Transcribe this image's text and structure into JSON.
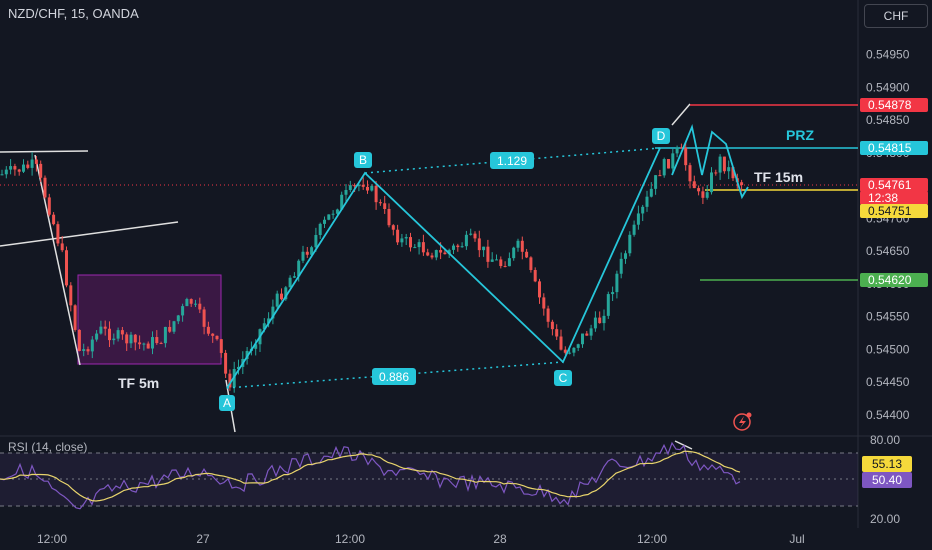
{
  "header": {
    "symbol_title": "NZD/CHF, 15, OANDA",
    "currency": "CHF"
  },
  "rsi": {
    "title": "RSI (14, close)",
    "value_purple": "50.40",
    "value_yellow": "55.13"
  },
  "colors": {
    "bg": "#131722",
    "up": "#26a69a",
    "down": "#ef5350",
    "pattern": "#26c6da",
    "rsi_line": "#7e57c2",
    "rsi_ma": "#e8d46c"
  },
  "chart_data": [
    {
      "type": "candlestick",
      "ylim": [
        0.5438,
        0.5498
      ],
      "y_ticks": [
        "0.54950",
        "0.54900",
        "0.54850",
        "0.54800",
        "0.54750",
        "0.54700",
        "0.54650",
        "0.54600",
        "0.54550",
        "0.54500",
        "0.54450",
        "0.54400"
      ],
      "x_ticks": [
        "12:00",
        "27",
        "12:00",
        "28",
        "12:00",
        "Jul"
      ],
      "price_tags": [
        {
          "label": "0.54878",
          "value": 0.54878,
          "color": "#f23645"
        },
        {
          "label": "0.54815",
          "value": 0.54815,
          "color": "#26c6da"
        },
        {
          "label": "0.54761",
          "value": 0.54761,
          "color": "#f23645"
        },
        {
          "label": "12:38",
          "value": 0.54742,
          "color": "#f23645"
        },
        {
          "label": "0.54751",
          "value": 0.54751,
          "color": "#f5d93b"
        },
        {
          "label": "0.54620",
          "value": 0.5462,
          "color": "#4caf50"
        }
      ],
      "pattern_points": [
        {
          "label": "A",
          "value": 0.54455
        },
        {
          "label": "B",
          "value": 0.54768
        },
        {
          "label": "C",
          "value": 0.545
        },
        {
          "label": "D",
          "value": 0.54815
        }
      ],
      "ratios": [
        {
          "label": "1.129"
        },
        {
          "label": "0.886"
        }
      ],
      "annotations": [
        "TF 5m",
        "TF 15m",
        "PRZ"
      ]
    },
    {
      "type": "line",
      "name": "RSI",
      "ylim": [
        15,
        85
      ],
      "y_ticks": [
        "80.00",
        "20.00"
      ],
      "bands": [
        70,
        30
      ]
    }
  ]
}
